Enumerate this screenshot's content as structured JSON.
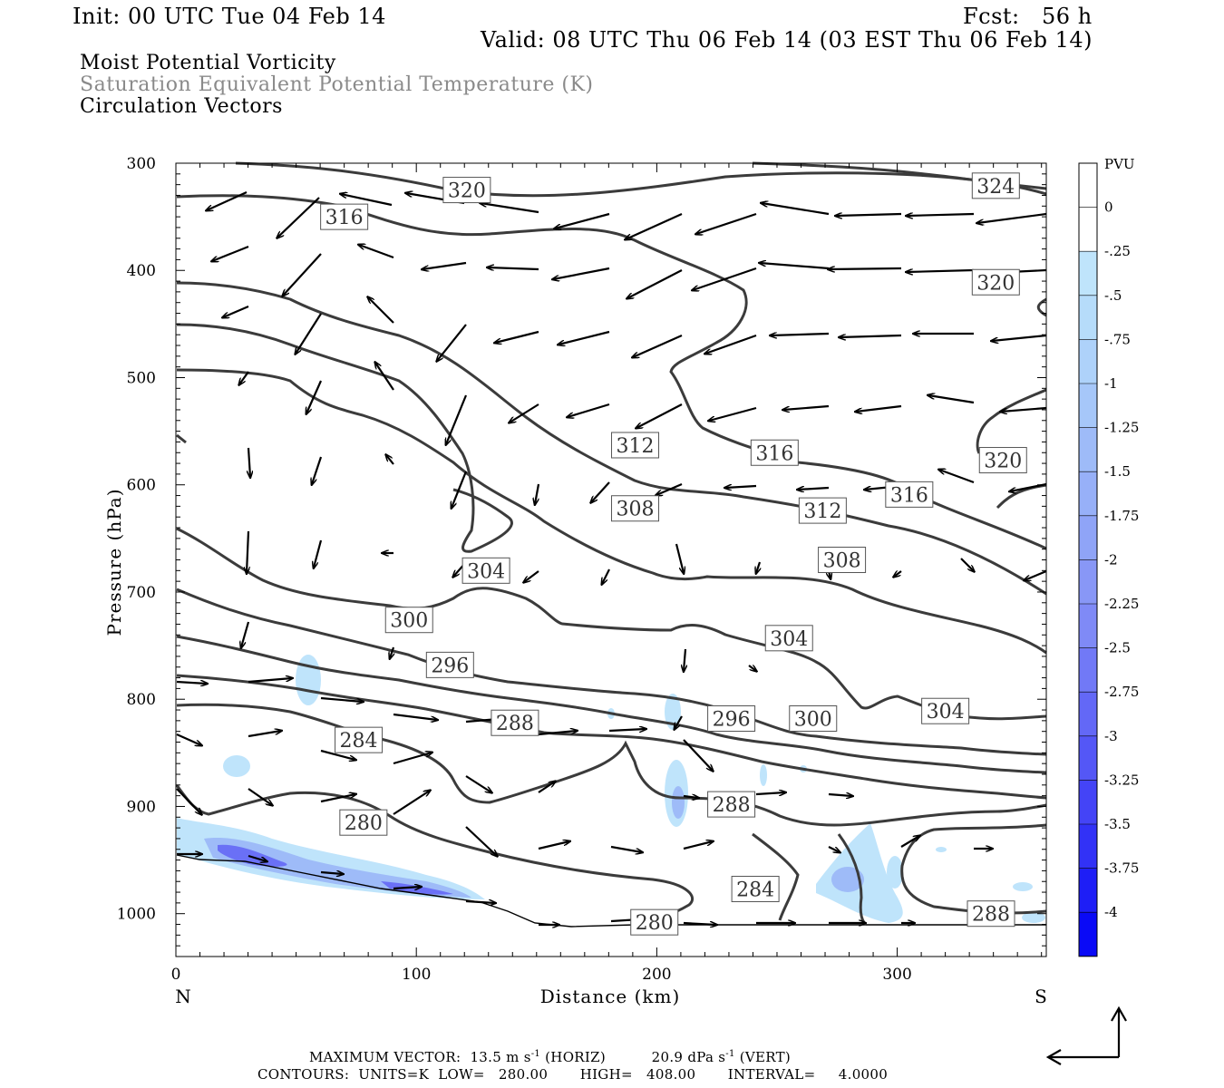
{
  "header": {
    "init": "Init: 00 UTC Tue 04 Feb 14",
    "fcst": "Fcst:   56 h",
    "valid": "Valid: 08 UTC Thu 06 Feb 14 (03 EST Thu 06 Feb 14)"
  },
  "fields": [
    "Moist Potential Vorticity",
    "Saturation Equivalent Potential Temperature (K)",
    "Circulation Vectors"
  ],
  "chart_data": {
    "type": "cross-section",
    "x_axis": {
      "label": "Distance (km)",
      "range": [
        0,
        362
      ],
      "ticks": [
        0,
        100,
        200,
        300
      ],
      "left_end": "N",
      "right_end": "S"
    },
    "y_axis": {
      "label": "Pressure (hPa)",
      "range": [
        300,
        1040
      ],
      "ticks": [
        300,
        400,
        500,
        600,
        700,
        800,
        900,
        1000
      ],
      "inverted": true
    },
    "colorbar": {
      "unit": "PVU",
      "levels": [
        "0",
        "-.25",
        "-.5",
        "-.75",
        "-1",
        "-1.25",
        "-1.5",
        "-1.75",
        "-2",
        "-2.25",
        "-2.5",
        "-2.75",
        "-3",
        "-3.25",
        "-3.5",
        "-3.75",
        "-4"
      ],
      "colors": [
        "#ffffff",
        "#ffffff",
        "#bfe4fb",
        "#b6dcfa",
        "#aed2fa",
        "#a6c7f9",
        "#9ebbf8",
        "#97b0f8",
        "#8fa4f7",
        "#8897f6",
        "#7f8af6",
        "#7179f6",
        "#6368f6",
        "#5457f6",
        "#4444f6",
        "#3232f6",
        "#1e1ef6",
        "#0a0af6"
      ]
    },
    "contour_labels": [
      {
        "v": "320",
        "x": 121,
        "p": 325
      },
      {
        "v": "324",
        "x": 341,
        "p": 321
      },
      {
        "v": "316",
        "x": 70,
        "p": 350
      },
      {
        "v": "320",
        "x": 341,
        "p": 411
      },
      {
        "v": "312",
        "x": 191,
        "p": 563
      },
      {
        "v": "316",
        "x": 249,
        "p": 570
      },
      {
        "v": "320",
        "x": 344,
        "p": 577
      },
      {
        "v": "316",
        "x": 305,
        "p": 609
      },
      {
        "v": "308",
        "x": 191,
        "p": 622
      },
      {
        "v": "312",
        "x": 269,
        "p": 624
      },
      {
        "v": "308",
        "x": 277,
        "p": 670
      },
      {
        "v": "304",
        "x": 129,
        "p": 680
      },
      {
        "v": "300",
        "x": 97,
        "p": 726
      },
      {
        "v": "304",
        "x": 255,
        "p": 743
      },
      {
        "v": "296",
        "x": 114,
        "p": 768
      },
      {
        "v": "296",
        "x": 231,
        "p": 818
      },
      {
        "v": "300",
        "x": 265,
        "p": 818
      },
      {
        "v": "304",
        "x": 320,
        "p": 811
      },
      {
        "v": "288",
        "x": 141,
        "p": 822
      },
      {
        "v": "284",
        "x": 76,
        "p": 838
      },
      {
        "v": "288",
        "x": 231,
        "p": 898
      },
      {
        "v": "280",
        "x": 78,
        "p": 915
      },
      {
        "v": "284",
        "x": 241,
        "p": 977
      },
      {
        "v": "288",
        "x": 339,
        "p": 1000
      },
      {
        "v": "280",
        "x": 199,
        "p": 1008
      }
    ],
    "contours": {
      "units": "K",
      "low": 280,
      "high": 408,
      "interval": 4
    }
  },
  "footer": {
    "vector_prefix": "MAXIMUM VECTOR:  13.5 m s",
    "vector_horiz": "(HORIZ)",
    "vector_vert_prefix": "20.9 dPa s",
    "vector_vert": "(VERT)",
    "exp": "-1",
    "contours": "CONTOURS:  UNITS=K  LOW=   280.00       HIGH=   408.00       INTERVAL=     4.0000"
  }
}
